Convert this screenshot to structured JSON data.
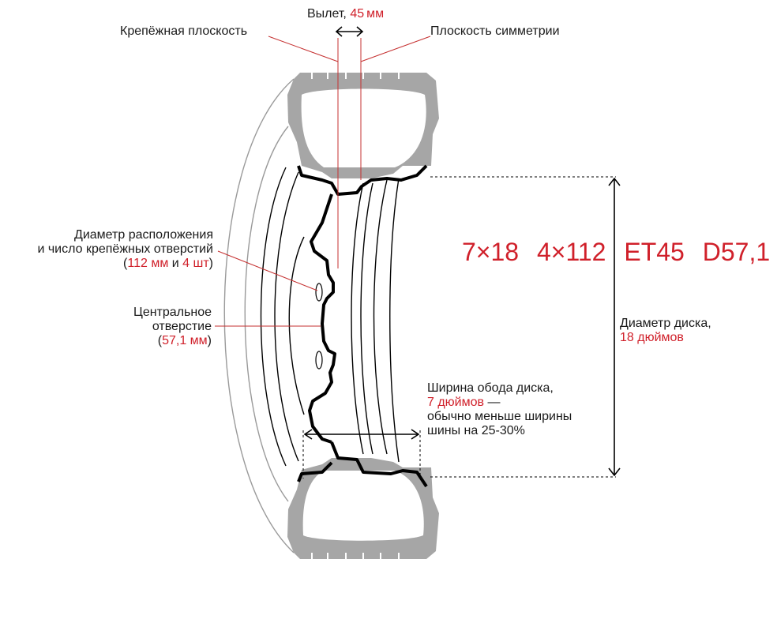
{
  "offset": {
    "label": "Вылет,",
    "value": "45",
    "unit": "мм"
  },
  "mounting_plane": "Крепёжная плоскость",
  "symmetry_plane": "Плоскость симметрии",
  "bolt_pattern": {
    "line1": "Диаметр расположения",
    "line2": "и число крепёжных отверстий",
    "open": "(",
    "diameter": "112 мм",
    "and": " и ",
    "count": "4 шт",
    "close": ")"
  },
  "center_bore": {
    "line1": "Центральное",
    "line2": "отверстие",
    "open": "(",
    "value": "57,1 мм",
    "close": ")"
  },
  "spec": {
    "size": "7×18",
    "pcd": "4×112",
    "et": "ET45",
    "dia": "D57,1"
  },
  "rim_diameter": {
    "label": "Диаметр диска,",
    "value": "18 дюймов"
  },
  "rim_width": {
    "label": "Ширина обода диска,",
    "value": "7 дюймов",
    "dash": " —",
    "line3": "обычно меньше ширины",
    "line4": "шины на 25-30%"
  },
  "colors": {
    "accent": "#d0202a",
    "tire": "#a6a6a6",
    "line": "#000000",
    "leader": "#c53030"
  }
}
